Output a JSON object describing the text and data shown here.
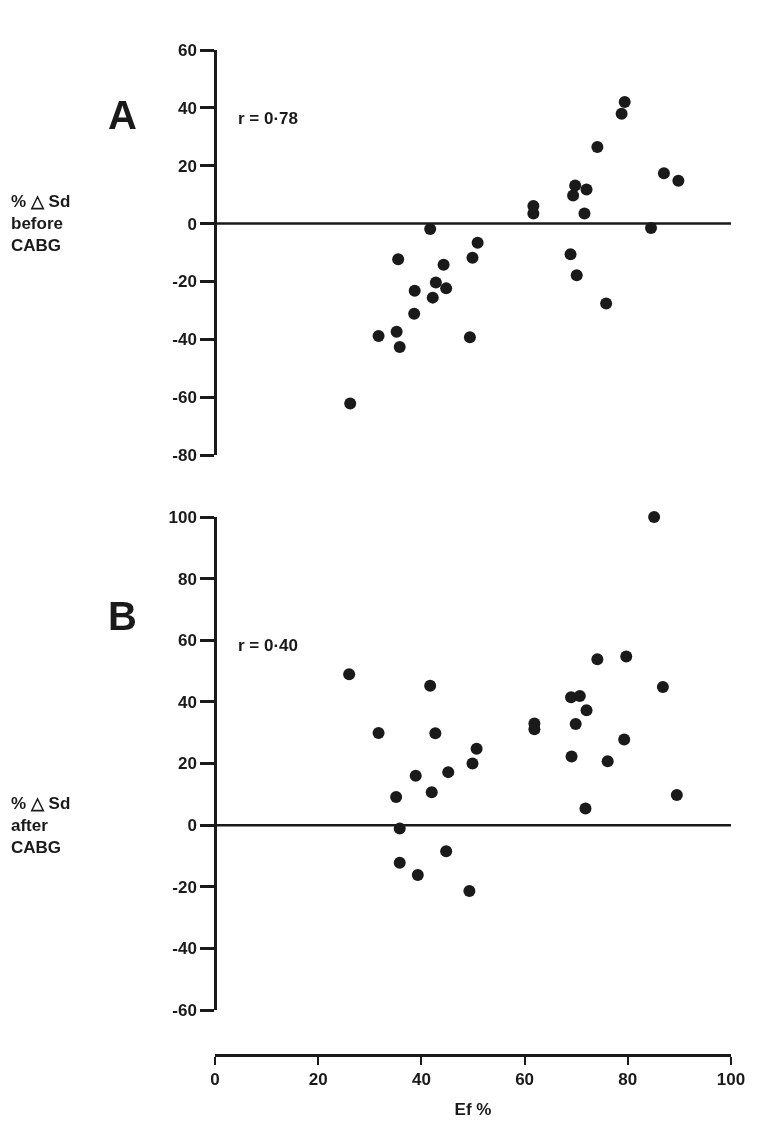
{
  "chart_data": [
    {
      "type": "scatter",
      "title": "A",
      "ylabel": "% △ Sd\nbefore\nCABG",
      "annotations": [
        "r = 0·78"
      ],
      "color": "#1a1a1a",
      "marker": "circle",
      "tick_labels": "y",
      "x": [
        79.4,
        78.8,
        74.1,
        87.0,
        89.8,
        69.8,
        72.0,
        69.4,
        61.7,
        61.7,
        71.6,
        41.7,
        84.5,
        50.9,
        35.5,
        49.9,
        68.9,
        44.3,
        70.1,
        42.8,
        44.8,
        38.7,
        42.2,
        75.8,
        38.6,
        31.7,
        35.2,
        49.4,
        35.8,
        26.2
      ],
      "values": [
        42.0,
        38.0,
        26.5,
        17.4,
        14.8,
        13.2,
        11.8,
        9.7,
        6.1,
        3.5,
        3.5,
        -1.9,
        -1.5,
        -6.6,
        -12.3,
        -11.8,
        -10.6,
        -14.2,
        -17.9,
        -20.4,
        -22.4,
        -23.2,
        -25.6,
        -27.6,
        -31.2,
        -38.9,
        -37.4,
        -39.3,
        -42.7,
        -62.2
      ],
      "xlim": [
        0,
        100
      ],
      "ylim": [
        -80,
        60
      ],
      "yticks": [
        -80,
        -60,
        -40,
        -20,
        0,
        20,
        40,
        60
      ],
      "ref_lines": [
        {
          "axis": "y",
          "value": 0,
          "color": "#1a1a1a"
        }
      ]
    },
    {
      "type": "scatter",
      "title": "B",
      "ylabel": "% △ Sd\nafter\nCABG",
      "xlabel": "Ef %",
      "annotations": [
        "r = 0·40"
      ],
      "color": "#1a1a1a",
      "marker": "circle",
      "x": [
        85.1,
        26.0,
        41.7,
        74.1,
        79.7,
        86.8,
        69.0,
        70.7,
        72.0,
        61.9,
        61.9,
        69.9,
        31.7,
        42.7,
        79.3,
        50.7,
        69.1,
        76.1,
        49.9,
        38.9,
        45.2,
        35.1,
        42.0,
        89.5,
        71.8,
        35.8,
        44.8,
        35.8,
        39.3,
        49.3
      ],
      "values": [
        100,
        49.0,
        45.2,
        53.8,
        54.7,
        44.8,
        41.5,
        41.9,
        37.3,
        33.0,
        31.1,
        32.8,
        29.9,
        29.8,
        27.8,
        24.8,
        22.3,
        20.7,
        20.0,
        16.0,
        17.2,
        9.1,
        10.7,
        9.8,
        5.4,
        -1.1,
        -8.5,
        -12.2,
        -16.2,
        -21.4
      ],
      "xlim": [
        0,
        100
      ],
      "xticks": [
        0,
        20,
        40,
        60,
        80,
        100
      ],
      "ylim": [
        -60,
        100
      ],
      "yticks": [
        -60,
        -40,
        -20,
        0,
        20,
        40,
        60,
        80,
        100
      ],
      "ref_lines": [
        {
          "axis": "y",
          "value": 0,
          "color": "#1a1a1a"
        }
      ]
    }
  ]
}
